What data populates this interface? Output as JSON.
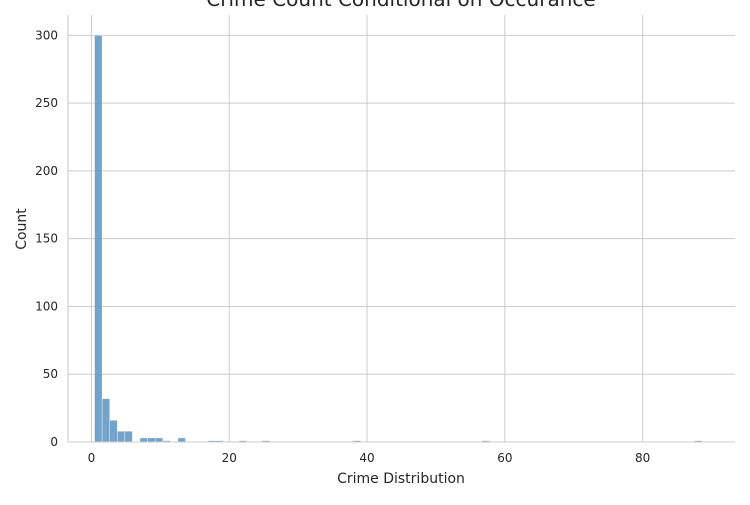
{
  "chart_data": {
    "type": "bar",
    "title": "Crime Count Conditional on Occurance",
    "xlabel": "Crime Distribution",
    "ylabel": "Count",
    "xlim": [
      -3.4,
      93.4
    ],
    "ylim": [
      0,
      315
    ],
    "xticks": [
      0,
      20,
      40,
      60,
      80
    ],
    "yticks": [
      0,
      50,
      100,
      150,
      200,
      250,
      300
    ],
    "grid": true,
    "bin_width": 1.1,
    "bins": [
      {
        "x": 1,
        "value": 300
      },
      {
        "x": 2.1,
        "value": 32
      },
      {
        "x": 3.2,
        "value": 16
      },
      {
        "x": 4.3,
        "value": 8
      },
      {
        "x": 5.4,
        "value": 8
      },
      {
        "x": 7.6,
        "value": 3
      },
      {
        "x": 8.7,
        "value": 3
      },
      {
        "x": 9.8,
        "value": 3
      },
      {
        "x": 10.9,
        "value": 1
      },
      {
        "x": 13.1,
        "value": 3
      },
      {
        "x": 17.5,
        "value": 1
      },
      {
        "x": 18.6,
        "value": 1
      },
      {
        "x": 22,
        "value": 1
      },
      {
        "x": 25.3,
        "value": 1
      },
      {
        "x": 38.5,
        "value": 1
      },
      {
        "x": 57.2,
        "value": 1
      },
      {
        "x": 88.1,
        "value": 1
      }
    ],
    "colors": {
      "bar": "#5b93c2",
      "grid": "#cccccc",
      "text": "#262626"
    }
  }
}
